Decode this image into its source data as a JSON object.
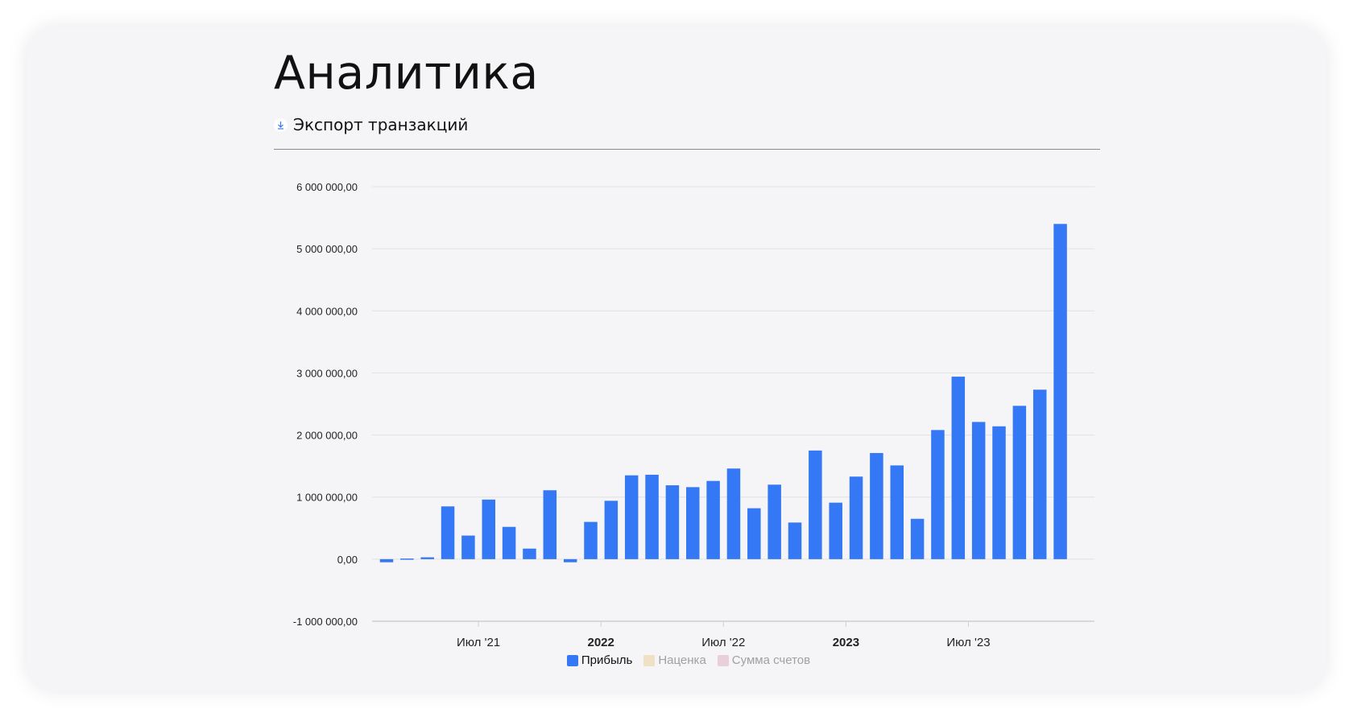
{
  "page": {
    "title": "Аналитика",
    "export_label": "Экспорт транзакций",
    "export_icon": "download-icon"
  },
  "colors": {
    "bar": "#3478f6",
    "legend_markup": "#f0e0c4",
    "legend_invoices": "#e8cfd9",
    "text": "#111111"
  },
  "legend": [
    {
      "label": "Прибыль",
      "color": "#3478f6",
      "active": true
    },
    {
      "label": "Наценка",
      "color": "#f0e0c4",
      "active": false
    },
    {
      "label": "Сумма счетов",
      "color": "#e8cfd9",
      "active": false
    }
  ],
  "chart_data": {
    "type": "bar",
    "ylim": [
      -1000000,
      6000000
    ],
    "y_ticks": [
      6000000,
      5000000,
      4000000,
      3000000,
      2000000,
      1000000,
      0,
      -1000000
    ],
    "y_tick_labels": [
      "6 000 000,00",
      "5 000 000,00",
      "4 000 000,00",
      "3 000 000,00",
      "2 000 000,00",
      "1 000 000,00",
      "0,00",
      "-1 000 000,00"
    ],
    "x_tick_labels": [
      {
        "label": "Июл '21",
        "after_index": 4,
        "bold": false
      },
      {
        "label": "2022",
        "after_index": 10,
        "bold": true
      },
      {
        "label": "Июл '22",
        "after_index": 16,
        "bold": false
      },
      {
        "label": "2023",
        "after_index": 22,
        "bold": true
      },
      {
        "label": "Июл '23",
        "after_index": 28,
        "bold": false
      }
    ],
    "grid": true,
    "legend_position": "bottom",
    "series": [
      {
        "name": "Прибыль",
        "values": [
          -50000,
          10000,
          30000,
          850000,
          380000,
          960000,
          520000,
          170000,
          1110000,
          -50000,
          600000,
          940000,
          1350000,
          1360000,
          1190000,
          1160000,
          1260000,
          1460000,
          820000,
          1200000,
          590000,
          1750000,
          910000,
          1330000,
          1710000,
          1510000,
          650000,
          2080000,
          2940000,
          2210000,
          2140000,
          2470000,
          2730000,
          5400000
        ]
      }
    ]
  }
}
